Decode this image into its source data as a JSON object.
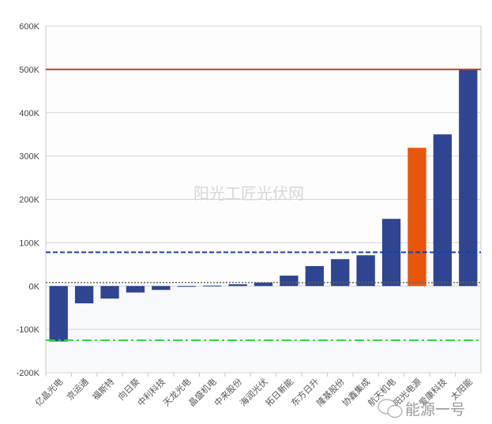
{
  "chart_data": {
    "type": "bar",
    "title": "",
    "xlabel": "",
    "ylabel": "",
    "ylim": [
      -200000,
      600000
    ],
    "yticks": [
      -200000,
      -100000,
      0,
      100000,
      200000,
      300000,
      400000,
      500000,
      600000
    ],
    "ytick_labels": [
      "-200K",
      "-100K",
      "0K",
      "100K",
      "200K",
      "300K",
      "400K",
      "500K",
      "600K"
    ],
    "grid": true,
    "categories": [
      "亿晶光电",
      "京运通",
      "福斯特",
      "向日葵",
      "中利科技",
      "天龙光电",
      "晶盛机电",
      "中来股份",
      "海润光伏",
      "拓日新能",
      "东方日升",
      "隆基股份",
      "协鑫集成",
      "航天机电",
      "阳光电源",
      "爱康科技",
      "太阳能"
    ],
    "values": [
      -128000,
      -40000,
      -29000,
      -15000,
      -9000,
      -1000,
      1000,
      4000,
      8000,
      24000,
      46000,
      62000,
      71000,
      155000,
      319000,
      350000,
      500000
    ],
    "highlight_index": 14,
    "colors": {
      "bar": "#2f4592",
      "highlight": "#e8560c"
    },
    "reference_lines": [
      {
        "value": 500000,
        "style": "solid",
        "color": "#c8412a"
      },
      {
        "value": 78000,
        "style": "dashed",
        "color": "#1a3ea8"
      },
      {
        "value": 8000,
        "style": "dotted",
        "color": "#666666"
      },
      {
        "value": -125000,
        "style": "dashdot",
        "color": "#27d83a"
      }
    ],
    "watermark": "阳光工匠光伏网"
  },
  "footer": {
    "brand": "能源一号"
  }
}
